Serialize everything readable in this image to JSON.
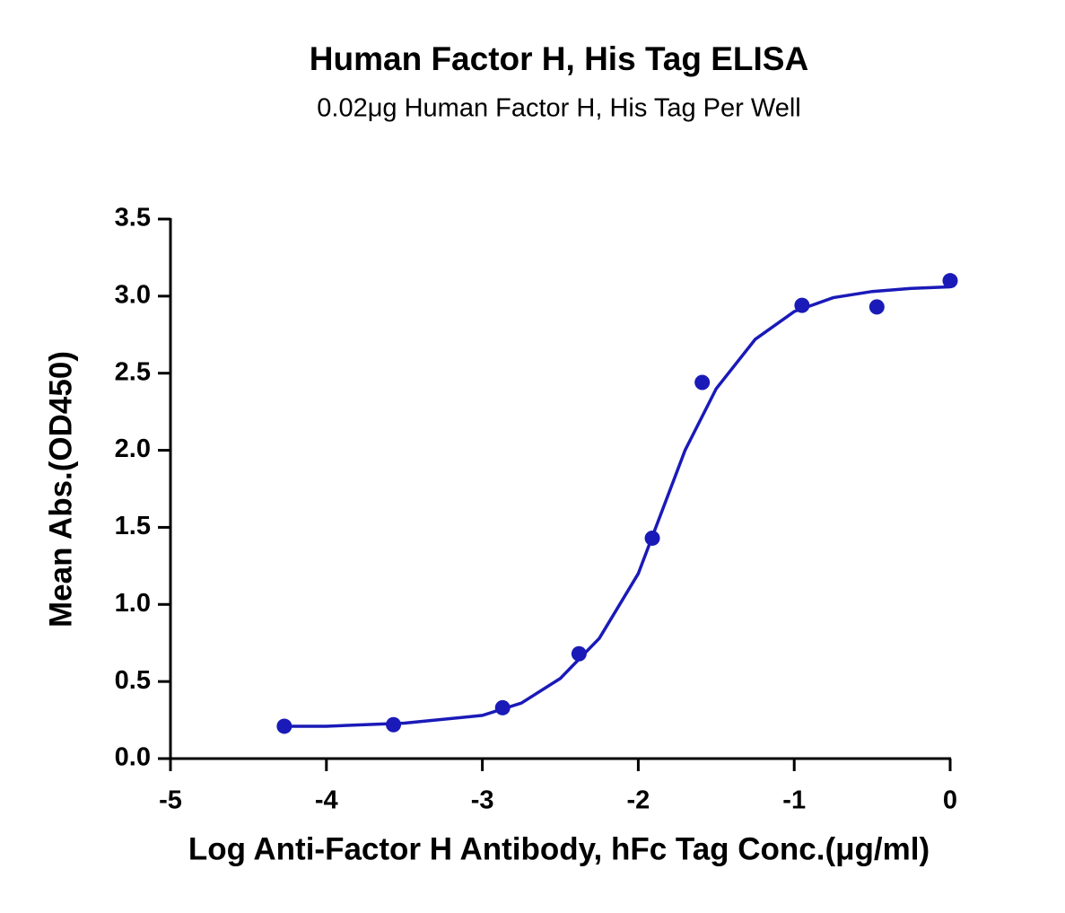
{
  "chart_data": {
    "type": "scatter",
    "title": "Human Factor H, His Tag ELISA",
    "subtitle": "0.02μg Human Factor H, His Tag Per Well",
    "x_label": "Log  Anti-Factor H Antibody, hFc Tag Conc.(μg/ml)",
    "y_label": "Mean Abs.(OD450)",
    "xlim": [
      -5,
      0
    ],
    "xticks": [
      -5,
      -4,
      -3,
      -2,
      -1,
      0
    ],
    "ylim": [
      0,
      3.5
    ],
    "yticks": [
      {
        "value": 0,
        "label": "0.0"
      },
      0.5,
      {
        "value": 1,
        "label": "1.0"
      },
      1.5,
      {
        "value": 2,
        "label": "2.0"
      },
      2.5,
      {
        "value": 3,
        "label": "3.0"
      },
      3.5
    ],
    "series": [
      {
        "style": "points",
        "color": "#1a1ab8",
        "x": [
          -4.27,
          -3.57,
          -2.87,
          -2.38,
          -1.91,
          -1.59,
          -0.95,
          -0.47,
          0.0
        ],
        "values": [
          0.21,
          0.22,
          0.33,
          0.68,
          1.43,
          2.44,
          2.94,
          2.93,
          3.1
        ]
      },
      {
        "style": "line",
        "color": "#1a1ab8",
        "x": [
          -4.27,
          -4,
          -3.5,
          -3,
          -2.75,
          -2.5,
          -2.25,
          -2,
          -1.85,
          -1.7,
          -1.5,
          -1.25,
          -1,
          -0.75,
          -0.5,
          -0.25,
          0
        ],
        "values": [
          0.21,
          0.21,
          0.23,
          0.28,
          0.36,
          0.52,
          0.78,
          1.2,
          1.6,
          2.0,
          2.4,
          2.72,
          2.9,
          2.99,
          3.03,
          3.05,
          3.06
        ]
      }
    ]
  }
}
